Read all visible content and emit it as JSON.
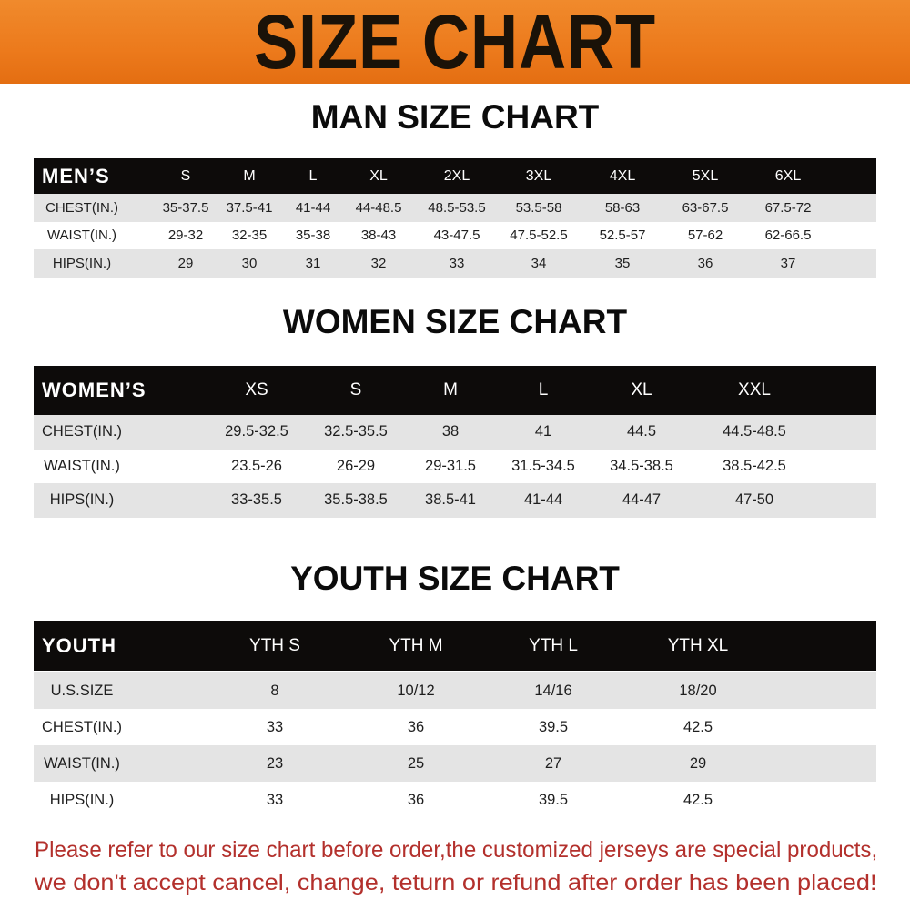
{
  "banner": {
    "title": "SIZE CHART"
  },
  "men": {
    "title": "MAN SIZE CHART",
    "header_label": "MEN’S",
    "sizes": [
      "S",
      "M",
      "L",
      "XL",
      "2XL",
      "3XL",
      "4XL",
      "5XL",
      "6XL"
    ],
    "rows": [
      {
        "label": "CHEST(IN.)",
        "values": [
          "35-37.5",
          "37.5-41",
          "41-44",
          "44-48.5",
          "48.5-53.5",
          "53.5-58",
          "58-63",
          "63-67.5",
          "67.5-72"
        ]
      },
      {
        "label": "WAIST(IN.)",
        "values": [
          "29-32",
          "32-35",
          "35-38",
          "38-43",
          "43-47.5",
          "47.5-52.5",
          "52.5-57",
          "57-62",
          "62-66.5"
        ]
      },
      {
        "label": "HIPS(IN.)",
        "values": [
          "29",
          "30",
          "31",
          "32",
          "33",
          "34",
          "35",
          "36",
          "37"
        ]
      }
    ]
  },
  "women": {
    "title": "WOMEN SIZE CHART",
    "header_label": "WOMEN’S",
    "sizes": [
      "XS",
      "S",
      "M",
      "L",
      "XL",
      "XXL"
    ],
    "rows": [
      {
        "label": "CHEST(IN.)",
        "values": [
          "29.5-32.5",
          "32.5-35.5",
          "38",
          "41",
          "44.5",
          "44.5-48.5"
        ]
      },
      {
        "label": "WAIST(IN.)",
        "values": [
          "23.5-26",
          "26-29",
          "29-31.5",
          "31.5-34.5",
          "34.5-38.5",
          "38.5-42.5"
        ]
      },
      {
        "label": "HIPS(IN.)",
        "values": [
          "33-35.5",
          "35.5-38.5",
          "38.5-41",
          "41-44",
          "44-47",
          "47-50"
        ]
      }
    ]
  },
  "youth": {
    "title": "YOUTH SIZE CHART",
    "header_label": "YOUTH",
    "sizes": [
      "YTH S",
      "YTH M",
      "YTH L",
      "YTH XL"
    ],
    "rows": [
      {
        "label": "U.S.SIZE",
        "values": [
          "8",
          "10/12",
          "14/16",
          "18/20"
        ]
      },
      {
        "label": "CHEST(IN.)",
        "values": [
          "33",
          "36",
          "39.5",
          "42.5"
        ]
      },
      {
        "label": "WAIST(IN.)",
        "values": [
          "23",
          "25",
          "27",
          "29"
        ]
      },
      {
        "label": "HIPS(IN.)",
        "values": [
          "33",
          "36",
          "39.5",
          "42.5"
        ]
      }
    ]
  },
  "notice": {
    "line1": "Please refer to our size chart before order,the customized jerseys are special products,",
    "line2": "we don't accept cancel, change, teturn or refund after order has been placed!"
  },
  "colors": {
    "banner": "#ec7a1c",
    "header_bg": "#0d0b0a",
    "row_alt": "#e4e4e4",
    "notice": "#b3302c"
  }
}
